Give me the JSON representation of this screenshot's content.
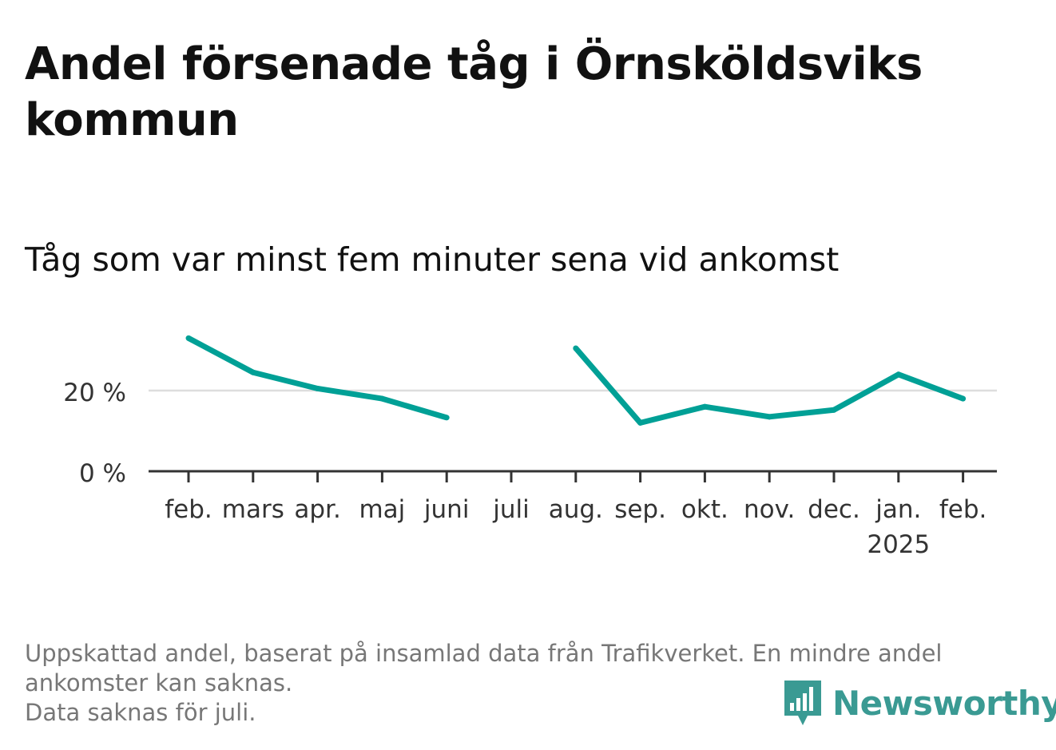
{
  "title": "Andel försenade tåg i Örnsköldsviks kommun",
  "subtitle": "Tåg som var minst fem minuter sena vid ankomst",
  "footnote": {
    "line1": "Uppskattad andel, baserat på insamlad data från Trafikverket. En mindre andel",
    "line2": "ankomster kan saknas.",
    "line3": "Data saknas för juli."
  },
  "brand": {
    "name": "Newsworthy",
    "color": "#3a9a93",
    "icon": "newsworthy-logo-icon"
  },
  "chart_data": {
    "type": "line",
    "categories": [
      "feb.",
      "mars",
      "apr.",
      "maj",
      "juni",
      "juli",
      "aug.",
      "sep.",
      "okt.",
      "nov.",
      "dec.",
      "jan.",
      "feb."
    ],
    "year_labels": [
      "",
      "",
      "",
      "",
      "",
      "",
      "",
      "",
      "",
      "",
      "",
      "2025",
      ""
    ],
    "series": [
      {
        "values": [
          33,
          24.5,
          20.5,
          18,
          13.3,
          null,
          30.5,
          12,
          16,
          13.5,
          15.2,
          24,
          18
        ],
        "color": "#00a096"
      }
    ],
    "y_ticks": [
      0,
      20
    ],
    "y_tick_labels": [
      "0 %",
      "20 %"
    ],
    "ylim": [
      0,
      33
    ],
    "grid": true,
    "gridline_color": "#dddddd",
    "baseline_color": "#333333"
  }
}
